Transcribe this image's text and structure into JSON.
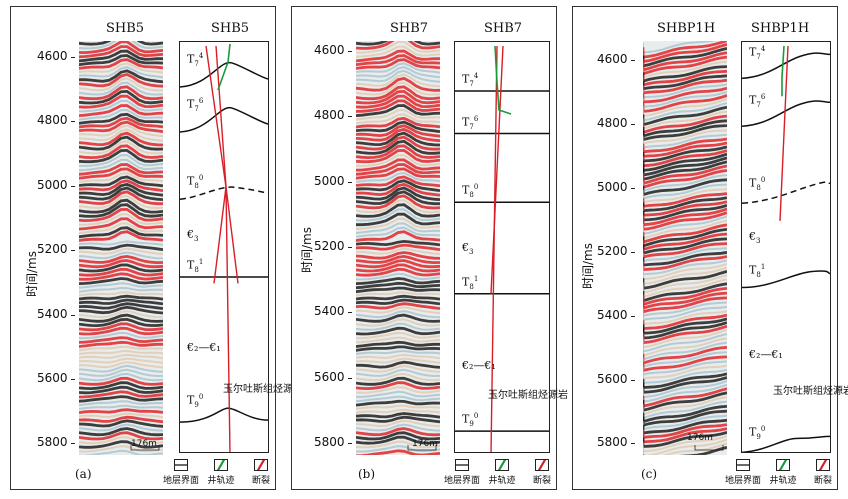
{
  "figure": {
    "y_axis_label": "时间/ms",
    "scale_text": "176m",
    "legend": {
      "horizon": "地层界面",
      "well": "井轨迹",
      "fault": "断裂"
    },
    "source_rock_label": "玉尔吐斯组烃源岩",
    "colors": {
      "horizon": "#111111",
      "well": "#1a9a3a",
      "fault": "#d81e27",
      "seismic_red": "#e0262a",
      "seismic_black": "#111111"
    }
  },
  "panels": [
    {
      "id": "a",
      "label": "(a)",
      "seismic_title": "SHB5",
      "interp_title": "SHB5",
      "time_range_ms": [
        4550,
        5830
      ],
      "ticks_ms": [
        4600,
        4800,
        5000,
        5200,
        5400,
        5600,
        5800
      ],
      "tick_labels": [
        "4600",
        "4800",
        "5000",
        "5200",
        "5400",
        "5600",
        "5800"
      ],
      "horizons": [
        {
          "name": "T7_4",
          "base": "T",
          "sub": "7",
          "sup": "4",
          "time_ms": 4640,
          "dashed": false
        },
        {
          "name": "T7_6",
          "base": "T",
          "sub": "7",
          "sup": "6",
          "time_ms": 4780,
          "dashed": false
        },
        {
          "name": "T8_0",
          "base": "T",
          "sub": "8",
          "sup": "0",
          "time_ms": 5020,
          "dashed": true
        },
        {
          "name": "Cambrian3",
          "base": "€",
          "sub": "3",
          "sup": "",
          "time_ms": 5150,
          "dashed": false
        },
        {
          "name": "T8_1",
          "base": "T",
          "sub": "8",
          "sup": "1",
          "time_ms": 5280,
          "dashed": false
        },
        {
          "name": "Cambrian2-1",
          "base": "€₂—€₁",
          "sub": "",
          "sup": "",
          "time_ms": 5500,
          "dashed": false
        },
        {
          "name": "T9_0",
          "base": "T",
          "sub": "9",
          "sup": "0",
          "time_ms": 5700,
          "dashed": false
        }
      ]
    },
    {
      "id": "b",
      "label": "(b)",
      "seismic_title": "SHB7",
      "interp_title": "SHB7",
      "time_range_ms": [
        4570,
        5830
      ],
      "ticks_ms": [
        4600,
        4800,
        5000,
        5200,
        5400,
        5600,
        5800
      ],
      "tick_labels": [
        "4600",
        "4800",
        "5000",
        "5200",
        "5400",
        "5600",
        "5800"
      ],
      "horizons": [
        {
          "name": "T7_4",
          "base": "T",
          "sub": "7",
          "sup": "4",
          "time_ms": 4720,
          "dashed": false
        },
        {
          "name": "T7_6",
          "base": "T",
          "sub": "7",
          "sup": "6",
          "time_ms": 4850,
          "dashed": false
        },
        {
          "name": "T8_0",
          "base": "T",
          "sub": "8",
          "sup": "0",
          "time_ms": 5060,
          "dashed": false
        },
        {
          "name": "Cambrian3",
          "base": "€",
          "sub": "3",
          "sup": "",
          "time_ms": 5200,
          "dashed": false
        },
        {
          "name": "T8_1",
          "base": "T",
          "sub": "8",
          "sup": "1",
          "time_ms": 5340,
          "dashed": false
        },
        {
          "name": "Cambrian2-1",
          "base": "€₂—€₁",
          "sub": "",
          "sup": "",
          "time_ms": 5560,
          "dashed": false
        },
        {
          "name": "T9_0",
          "base": "T",
          "sub": "9",
          "sup": "0",
          "time_ms": 5760,
          "dashed": false
        }
      ]
    },
    {
      "id": "c",
      "label": "(c)",
      "seismic_title": "SHBP1H",
      "interp_title": "SHBP1H",
      "time_range_ms": [
        4540,
        5830
      ],
      "ticks_ms": [
        4600,
        4800,
        5000,
        5200,
        5400,
        5600,
        5800
      ],
      "tick_labels": [
        "4600",
        "4800",
        "5000",
        "5200",
        "5400",
        "5600",
        "5800"
      ],
      "horizons": [
        {
          "name": "T7_4",
          "base": "T",
          "sub": "7",
          "sup": "4",
          "time_ms": 4610,
          "dashed": false
        },
        {
          "name": "T7_6",
          "base": "T",
          "sub": "7",
          "sup": "6",
          "time_ms": 4760,
          "dashed": false
        },
        {
          "name": "T8_0",
          "base": "T",
          "sub": "8",
          "sup": "0",
          "time_ms": 5020,
          "dashed": true
        },
        {
          "name": "Cambrian3",
          "base": "€",
          "sub": "3",
          "sup": "",
          "time_ms": 5150,
          "dashed": false
        },
        {
          "name": "T8_1",
          "base": "T",
          "sub": "8",
          "sup": "1",
          "time_ms": 5290,
          "dashed": false
        },
        {
          "name": "Cambrian2-1",
          "base": "€₂—€₁",
          "sub": "",
          "sup": "",
          "time_ms": 5520,
          "dashed": false
        },
        {
          "name": "T9_0",
          "base": "T",
          "sub": "9",
          "sup": "0",
          "time_ms": 5800,
          "dashed": false
        }
      ]
    }
  ]
}
